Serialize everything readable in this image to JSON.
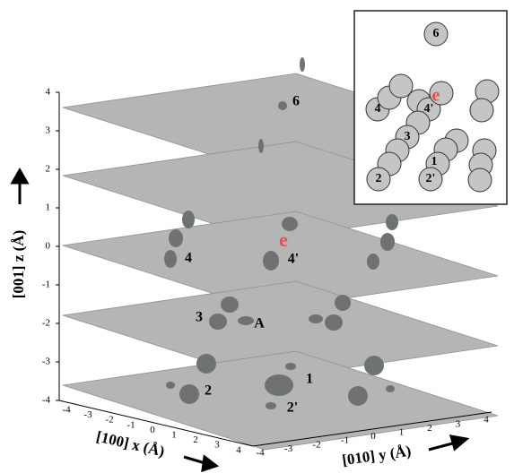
{
  "axes": {
    "z": {
      "label": "[001] z (Å)",
      "ticks": [
        4,
        3,
        2,
        1,
        0,
        -1,
        -2,
        -3,
        -4
      ]
    },
    "x": {
      "label": "[100] x (Å)",
      "ticks": [
        -4,
        -3,
        -2,
        -1,
        0,
        1,
        2,
        3,
        4
      ]
    },
    "y": {
      "label": "[010] y (Å)",
      "ticks": [
        -4,
        -3,
        -2,
        -1,
        0,
        1,
        2,
        3,
        4
      ]
    }
  },
  "plot_labels": [
    "6",
    "4",
    "4'",
    "e",
    "3",
    "A",
    "1",
    "2",
    "2'"
  ],
  "inset_labels": [
    "6",
    "4",
    "4'",
    "e",
    "3",
    "1",
    "2",
    "2'"
  ]
}
